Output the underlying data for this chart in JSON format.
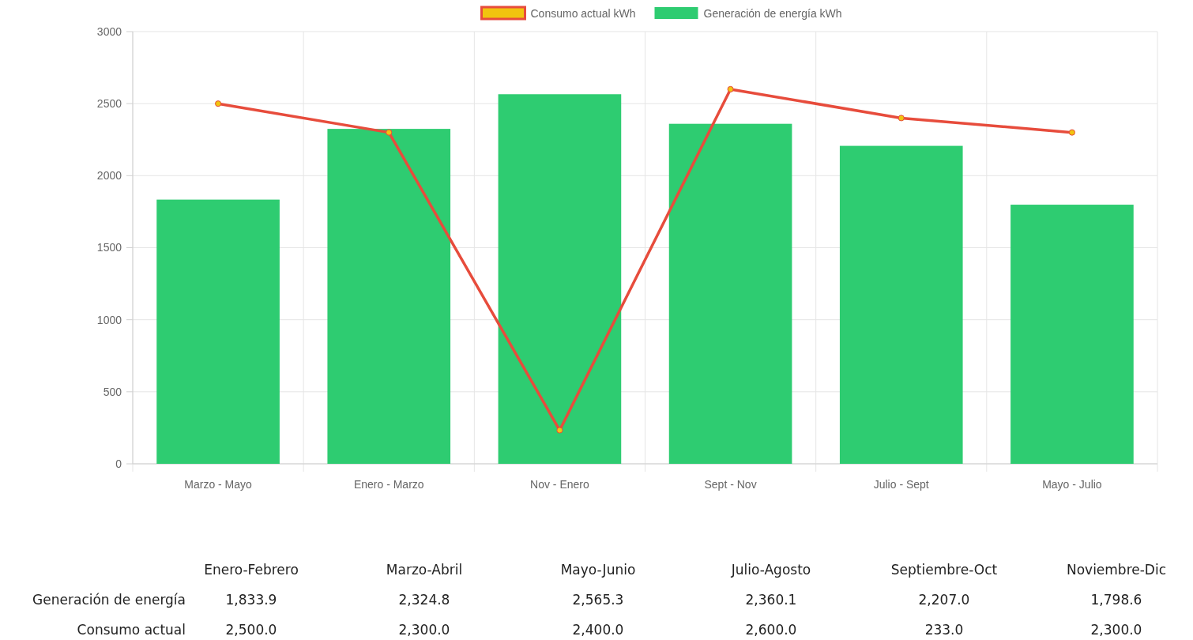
{
  "chart_data": [
    {
      "type": "bar",
      "categories": [
        "Marzo - Mayo",
        "Enero - Marzo",
        "Nov - Enero",
        "Sept - Nov",
        "Julio - Sept",
        "Mayo - Julio"
      ],
      "series": [
        {
          "name": "Consumo actual kWh",
          "type": "line",
          "color": "#e74c3c",
          "values": [
            2500,
            2300,
            233,
            2600,
            2400,
            2300
          ]
        },
        {
          "name": "Generación de energía kWh",
          "type": "bar",
          "color": "#2ecc71",
          "values": [
            1833.9,
            2324.8,
            2565.3,
            2360.1,
            2207.0,
            1798.6
          ]
        }
      ],
      "ylim": [
        0,
        3000
      ],
      "yticks": [
        0,
        500,
        1000,
        1500,
        2000,
        2500,
        3000
      ],
      "grid": true,
      "legend": "top",
      "marker": "circle"
    },
    {
      "type": "other",
      "categories": [
        "Enero-Febrero",
        "Marzo-Abril",
        "Mayo-Junio",
        "Julio-Agosto",
        "Septiembre-Oct",
        "Noviembre-Dic"
      ],
      "series": [
        {
          "name": "Generación de energía",
          "values": [
            1833.9,
            2324.8,
            2565.3,
            2360.1,
            2207.0,
            1798.6
          ],
          "value_labels": [
            "1,833.9",
            "2,324.8",
            "2,565.3",
            "2,360.1",
            "2,207.0",
            "1,798.6"
          ]
        },
        {
          "name": "Consumo actual",
          "values": [
            2500.0,
            2300.0,
            2400.0,
            2600.0,
            233.0,
            2300.0
          ],
          "value_labels": [
            "2,500.0",
            "2,300.0",
            "2,400.0",
            "2,600.0",
            "233.0",
            "2,300.0"
          ]
        }
      ]
    }
  ]
}
